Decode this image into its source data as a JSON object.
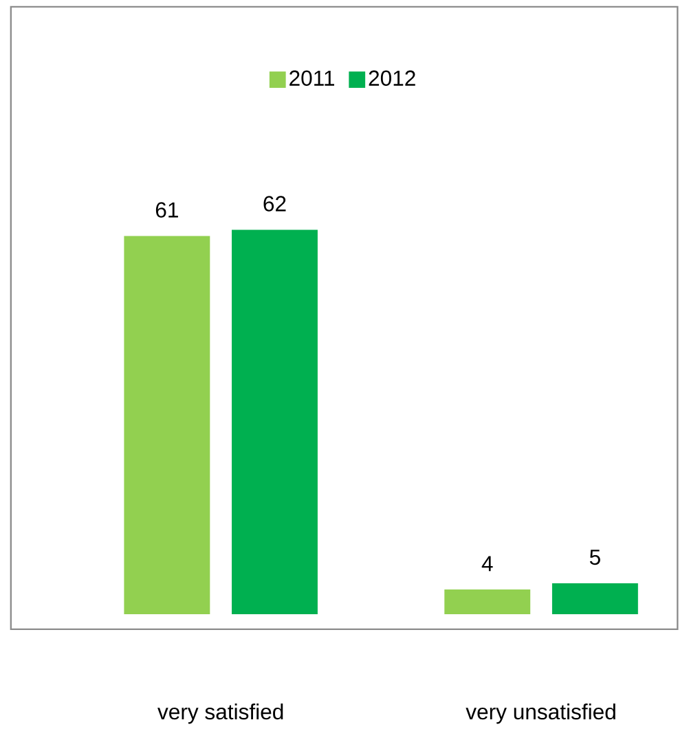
{
  "chart_data": {
    "type": "bar",
    "categories": [
      "very satisfied",
      "very unsatisfied"
    ],
    "series": [
      {
        "name": "2011",
        "color": "#92d050",
        "values": [
          61,
          4
        ]
      },
      {
        "name": "2012",
        "color": "#00b050",
        "values": [
          62,
          5
        ]
      }
    ],
    "data_labels": true,
    "legend": "top"
  }
}
